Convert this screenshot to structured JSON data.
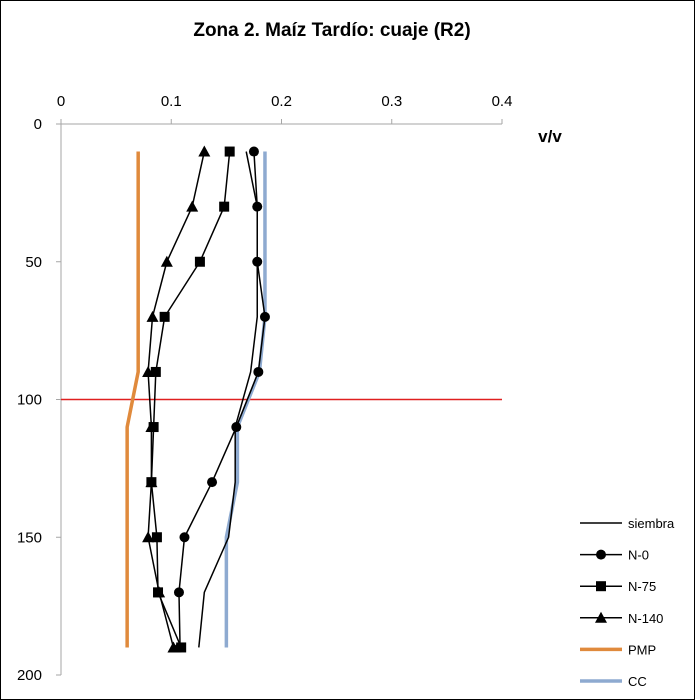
{
  "chart_data": {
    "type": "line",
    "title": "Zona 2. Maíz Tardío: cuaje (R2)",
    "xlabel": "v/v",
    "ylabel": "",
    "x_axis_position": "top",
    "y_axis_inverted": true,
    "xlim": [
      0,
      0.4
    ],
    "ylim": [
      0,
      200
    ],
    "x_ticks": [
      "0",
      "0.1",
      "0.2",
      "0.3",
      "0.4"
    ],
    "y_ticks": [
      "0",
      "50",
      "100",
      "150",
      "200"
    ],
    "reference_line": {
      "y": 100,
      "color": "#e02020"
    },
    "legend_position": "bottom-right",
    "series": [
      {
        "name": "siembra",
        "color": "#000000",
        "marker": "none",
        "points": [
          [
            0.168,
            10
          ],
          [
            0.178,
            30
          ],
          [
            0.178,
            50
          ],
          [
            0.178,
            70
          ],
          [
            0.172,
            90
          ],
          [
            0.158,
            110
          ],
          [
            0.158,
            130
          ],
          [
            0.152,
            150
          ],
          [
            0.13,
            170
          ],
          [
            0.125,
            190
          ]
        ]
      },
      {
        "name": "N-0",
        "color": "#000000",
        "marker": "circle",
        "points": [
          [
            0.175,
            10
          ],
          [
            0.178,
            30
          ],
          [
            0.178,
            50
          ],
          [
            0.185,
            70
          ],
          [
            0.179,
            90
          ],
          [
            0.159,
            110
          ],
          [
            0.137,
            130
          ],
          [
            0.112,
            150
          ],
          [
            0.107,
            170
          ],
          [
            0.108,
            190
          ]
        ]
      },
      {
        "name": "N-75",
        "color": "#000000",
        "marker": "square",
        "points": [
          [
            0.153,
            10
          ],
          [
            0.148,
            30
          ],
          [
            0.126,
            50
          ],
          [
            0.094,
            70
          ],
          [
            0.086,
            90
          ],
          [
            0.084,
            110
          ],
          [
            0.082,
            130
          ],
          [
            0.087,
            150
          ],
          [
            0.088,
            170
          ],
          [
            0.109,
            190
          ]
        ]
      },
      {
        "name": "N-140",
        "color": "#000000",
        "marker": "triangle",
        "points": [
          [
            0.13,
            10
          ],
          [
            0.119,
            30
          ],
          [
            0.096,
            50
          ],
          [
            0.083,
            70
          ],
          [
            0.079,
            90
          ],
          [
            0.082,
            110
          ],
          [
            0.082,
            130
          ],
          [
            0.079,
            150
          ],
          [
            0.089,
            170
          ],
          [
            0.102,
            190
          ]
        ]
      },
      {
        "name": "PMP",
        "color": "#e08a3c",
        "marker": "none",
        "points": [
          [
            0.07,
            10
          ],
          [
            0.07,
            30
          ],
          [
            0.07,
            50
          ],
          [
            0.07,
            70
          ],
          [
            0.07,
            90
          ],
          [
            0.06,
            110
          ],
          [
            0.06,
            130
          ],
          [
            0.06,
            150
          ],
          [
            0.06,
            170
          ],
          [
            0.06,
            190
          ]
        ]
      },
      {
        "name": "CC",
        "color": "#8eaad0",
        "marker": "none",
        "points": [
          [
            0.185,
            10
          ],
          [
            0.185,
            30
          ],
          [
            0.185,
            50
          ],
          [
            0.185,
            70
          ],
          [
            0.18,
            90
          ],
          [
            0.16,
            110
          ],
          [
            0.16,
            130
          ],
          [
            0.15,
            150
          ],
          [
            0.15,
            170
          ],
          [
            0.15,
            190
          ]
        ]
      }
    ]
  }
}
